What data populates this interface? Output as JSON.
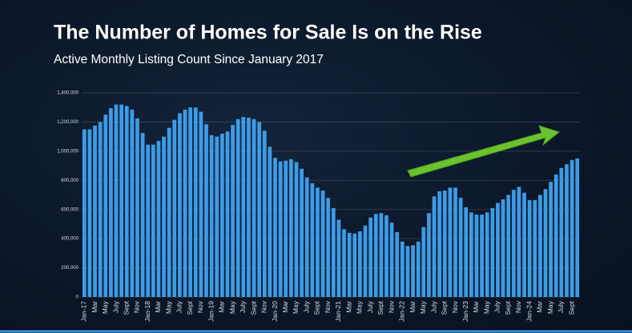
{
  "chart_data": {
    "type": "bar",
    "title": "The Number of Homes for Sale Is on the Rise",
    "subtitle": "Active Monthly Listing Count Since January 2017",
    "categories": [
      "Jan-17",
      null,
      "Mar",
      null,
      "May",
      null,
      "July",
      null,
      "Sept",
      null,
      "Nov",
      null,
      "Jan-18",
      null,
      "Mar",
      null,
      "May",
      null,
      "July",
      null,
      "Sept",
      null,
      "Nov",
      null,
      "Jan-19",
      null,
      "Mar",
      null,
      "May",
      null,
      "July",
      null,
      "Sept",
      null,
      "Nov",
      null,
      "Jan-20",
      null,
      "Mar",
      null,
      "May",
      null,
      "July",
      null,
      "Sept",
      null,
      "Nov",
      null,
      "Jan-21",
      null,
      "Mar",
      null,
      "May",
      null,
      "July",
      null,
      "Sept",
      null,
      "Nov",
      null,
      "Jan-22",
      null,
      "Mar",
      null,
      "May",
      null,
      "July",
      null,
      "Sept",
      null,
      "Nov",
      null,
      "Jan-23",
      null,
      "Mar",
      null,
      "May",
      null,
      "July",
      null,
      "Sept",
      null,
      "Nov",
      null,
      "Jan-24",
      null,
      "Mar",
      null,
      "May",
      null,
      "July",
      null,
      "Sept",
      null
    ],
    "values": [
      1150000,
      1150000,
      1175000,
      1200000,
      1250000,
      1295000,
      1320000,
      1320000,
      1310000,
      1285000,
      1225000,
      1125000,
      1045000,
      1045000,
      1070000,
      1100000,
      1160000,
      1215000,
      1260000,
      1285000,
      1300000,
      1300000,
      1270000,
      1185000,
      1110000,
      1100000,
      1120000,
      1135000,
      1180000,
      1220000,
      1235000,
      1230000,
      1220000,
      1200000,
      1140000,
      1030000,
      955000,
      930000,
      935000,
      945000,
      925000,
      880000,
      820000,
      780000,
      750000,
      730000,
      680000,
      610000,
      530000,
      465000,
      440000,
      435000,
      450000,
      490000,
      545000,
      570000,
      575000,
      560000,
      510000,
      445000,
      380000,
      350000,
      355000,
      380000,
      480000,
      575000,
      690000,
      725000,
      730000,
      750000,
      750000,
      680000,
      615000,
      580000,
      565000,
      565000,
      580000,
      610000,
      645000,
      670000,
      700000,
      735000,
      755000,
      715000,
      665000,
      665000,
      700000,
      740000,
      790000,
      840000,
      885000,
      910000,
      940000,
      950000
    ],
    "color": "#3d9be6",
    "ylim": [
      0,
      1400000
    ],
    "yticks": [
      0,
      {
        "value": 200000,
        "label": "200,000"
      },
      {
        "value": 400000,
        "label": "400,000"
      },
      {
        "value": 600000,
        "label": "600,000"
      },
      {
        "value": 800000,
        "label": "800,000"
      },
      {
        "value": 1000000,
        "label": "1,000,000"
      },
      {
        "value": 1200000,
        "label": "1,200,000"
      },
      {
        "value": 1400000,
        "label": "1,400,000"
      }
    ],
    "grid": true
  }
}
